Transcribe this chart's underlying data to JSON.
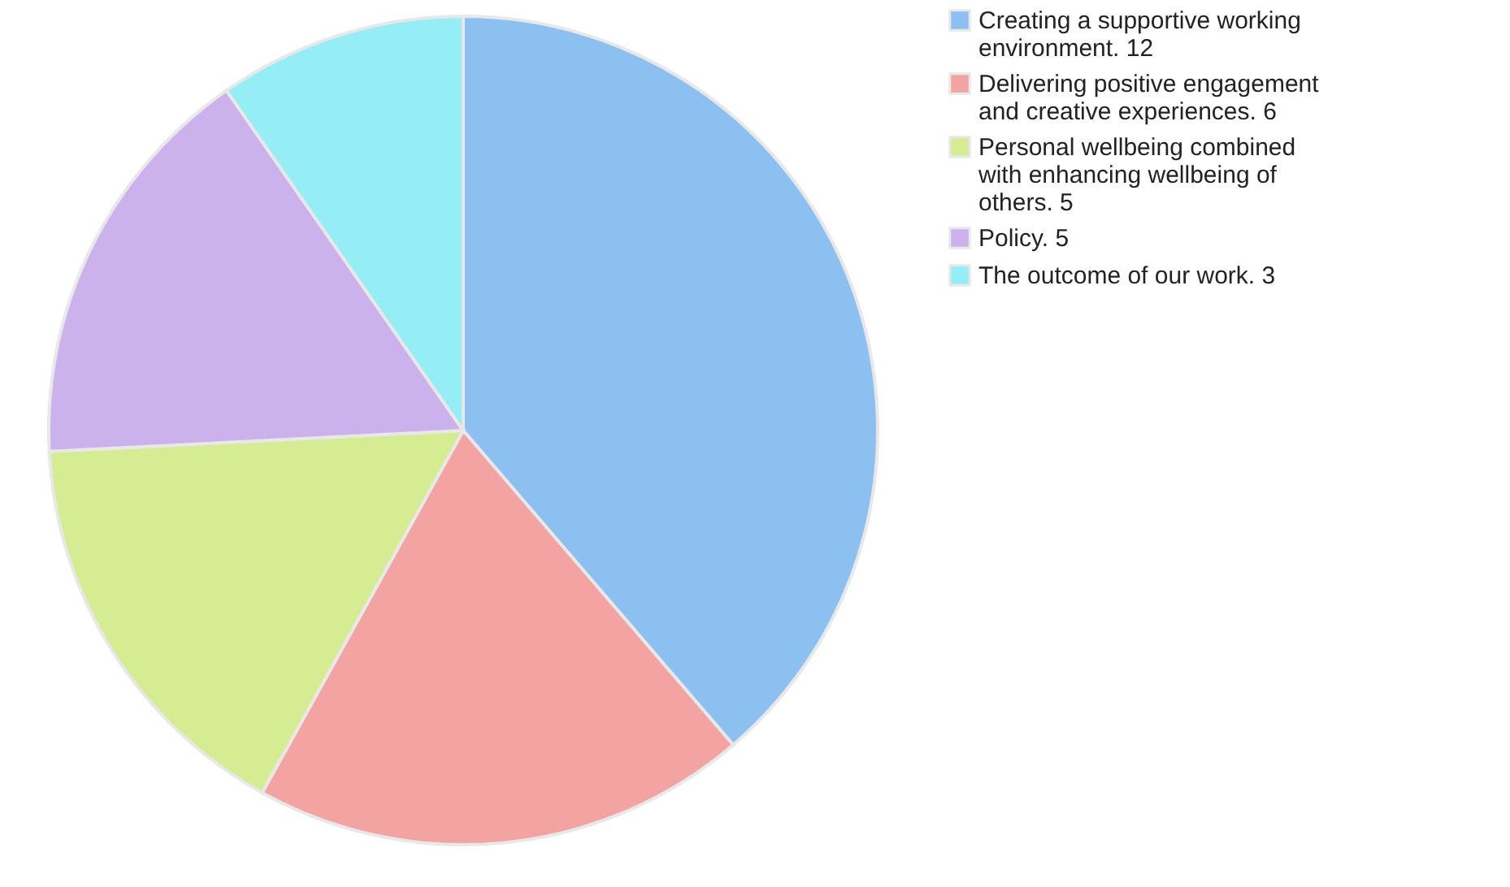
{
  "chart_data": {
    "type": "pie",
    "categories": [
      "Creating a supportive working environment.  12",
      "Delivering positive engagement and creative experiences. 6",
      "Personal wellbeing combined with enhancing wellbeing of others.  5",
      "Policy.  5",
      "The outcome of our work.  3"
    ],
    "values": [
      12,
      6,
      5,
      5,
      3
    ],
    "colors": [
      "#8cc0f0",
      "#f4a3a3",
      "#d6ec92",
      "#cbb2ec",
      "#95eef6"
    ],
    "legend": "right"
  }
}
